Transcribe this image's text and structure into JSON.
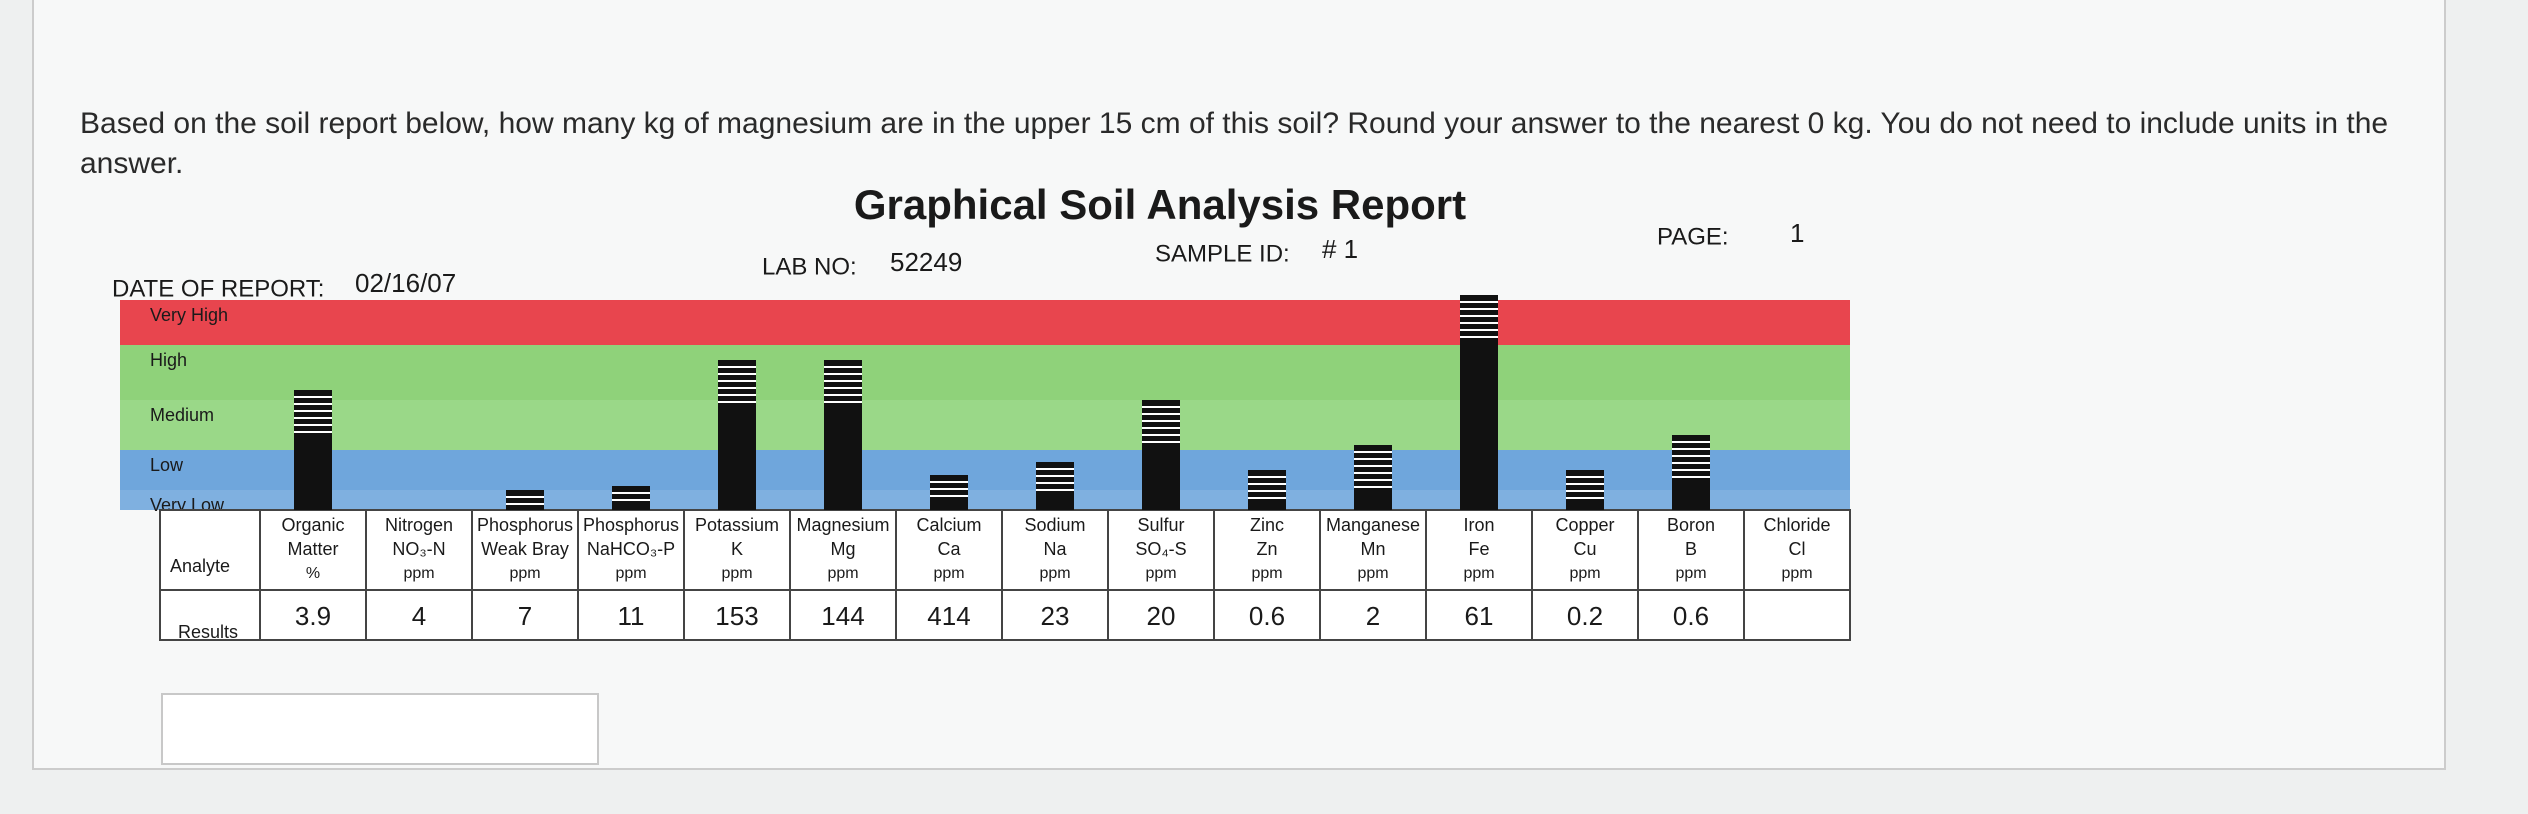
{
  "question": "Based on the soil report below, how many kg of magnesium are in the upper 15 cm of this soil? Round your answer to the nearest 0 kg.  You do not need to include units in the answer.",
  "report": {
    "title": "Graphical Soil Analysis Report",
    "date_label": "DATE OF REPORT:",
    "date": "02/16/07",
    "lab_label": "LAB NO:",
    "lab": "52249",
    "sample_label": "SAMPLE ID:",
    "sample": "# 1",
    "page_label": "PAGE:",
    "page": "1",
    "levels": [
      "Very High",
      "High",
      "Medium",
      "Low",
      "Very Low"
    ],
    "analyte_label": "Analyte",
    "results_label": "Results",
    "analytes": [
      {
        "name": "Organic",
        "symbol": "Matter",
        "unit": "%",
        "result": 3.9
      },
      {
        "name": "Nitrogen",
        "symbol": "NO₃-N",
        "unit": "ppm",
        "result": 4
      },
      {
        "name": "Phosphorus",
        "symbol": "Weak Bray",
        "unit": "ppm",
        "result": 7
      },
      {
        "name": "Phosphorus",
        "symbol": "NaHCO₃-P",
        "unit": "ppm",
        "result": 11
      },
      {
        "name": "Potassium",
        "symbol": "K",
        "unit": "ppm",
        "result": 153
      },
      {
        "name": "Magnesium",
        "symbol": "Mg",
        "unit": "ppm",
        "result": 144
      },
      {
        "name": "Calcium",
        "symbol": "Ca",
        "unit": "ppm",
        "result": 414
      },
      {
        "name": "Sodium",
        "symbol": "Na",
        "unit": "ppm",
        "result": 23
      },
      {
        "name": "Sulfur",
        "symbol": "SO₄-S",
        "unit": "ppm",
        "result": 20
      },
      {
        "name": "Zinc",
        "symbol": "Zn",
        "unit": "ppm",
        "result": 0.6
      },
      {
        "name": "Manganese",
        "symbol": "Mn",
        "unit": "ppm",
        "result": 2
      },
      {
        "name": "Iron",
        "symbol": "Fe",
        "unit": "ppm",
        "result": 61
      },
      {
        "name": "Copper",
        "symbol": "Cu",
        "unit": "ppm",
        "result": 0.2
      },
      {
        "name": "Boron",
        "symbol": "B",
        "unit": "ppm",
        "result": 0.6
      },
      {
        "name": "Chloride",
        "symbol": "Cl",
        "unit": "ppm"
      }
    ]
  }
}
